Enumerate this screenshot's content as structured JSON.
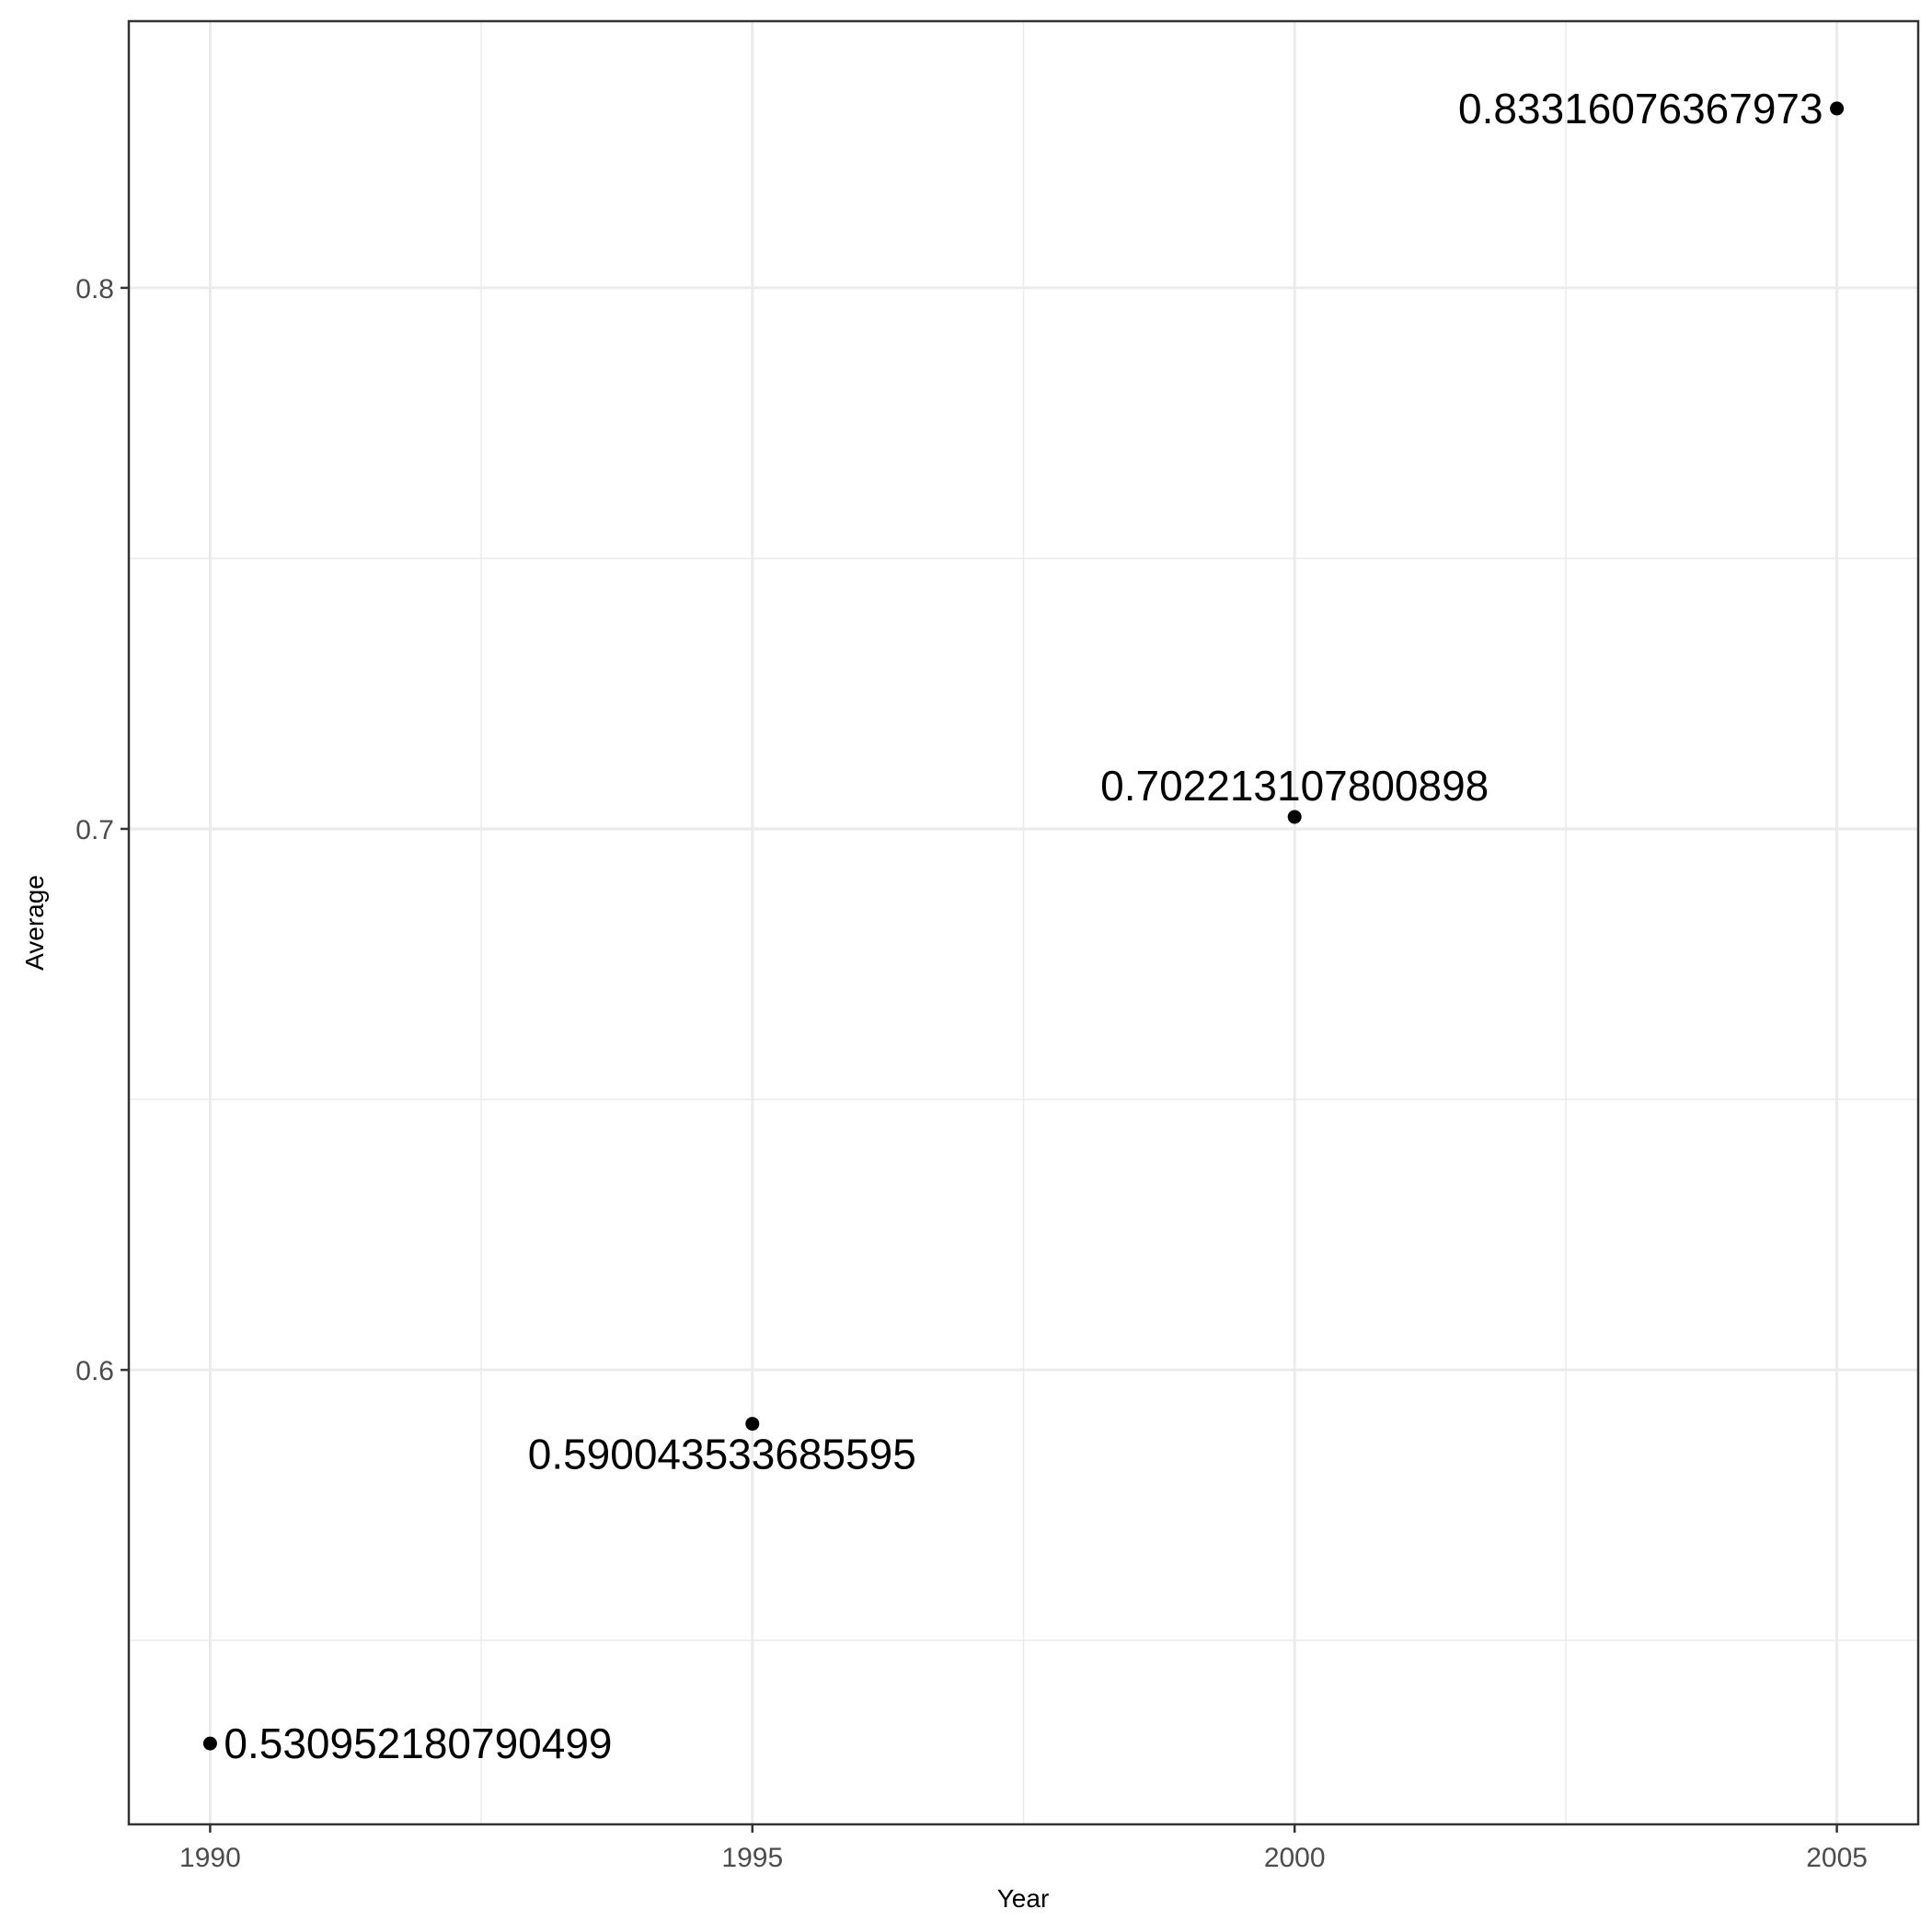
{
  "chart_data": {
    "type": "scatter",
    "title": "",
    "xlabel": "Year",
    "ylabel": "Average",
    "xlim": [
      1989.25,
      2005.75
    ],
    "ylim": [
      0.516,
      0.8493
    ],
    "x_ticks": [
      1990,
      1995,
      2000,
      2005
    ],
    "y_ticks": [
      0.6,
      0.7,
      0.8
    ],
    "x_tick_labels": [
      "1990",
      "1995",
      "2000",
      "2005"
    ],
    "y_tick_labels": [
      "0.6",
      "0.7",
      "0.8"
    ],
    "grid": true,
    "legend": "none",
    "point_color": "#000000",
    "points": [
      {
        "x": 1990,
        "y": 0.530952180790499,
        "label": "0.530952180790499",
        "label_position": "right"
      },
      {
        "x": 1995,
        "y": 0.590043533685595,
        "label": "0.590043533685595",
        "label_position": "below"
      },
      {
        "x": 2000,
        "y": 0.702213107800898,
        "label": "0.702213107800898",
        "label_position": "above"
      },
      {
        "x": 2005,
        "y": 0.83316076367973,
        "label": "0.83316076367973",
        "label_position": "left"
      }
    ]
  }
}
